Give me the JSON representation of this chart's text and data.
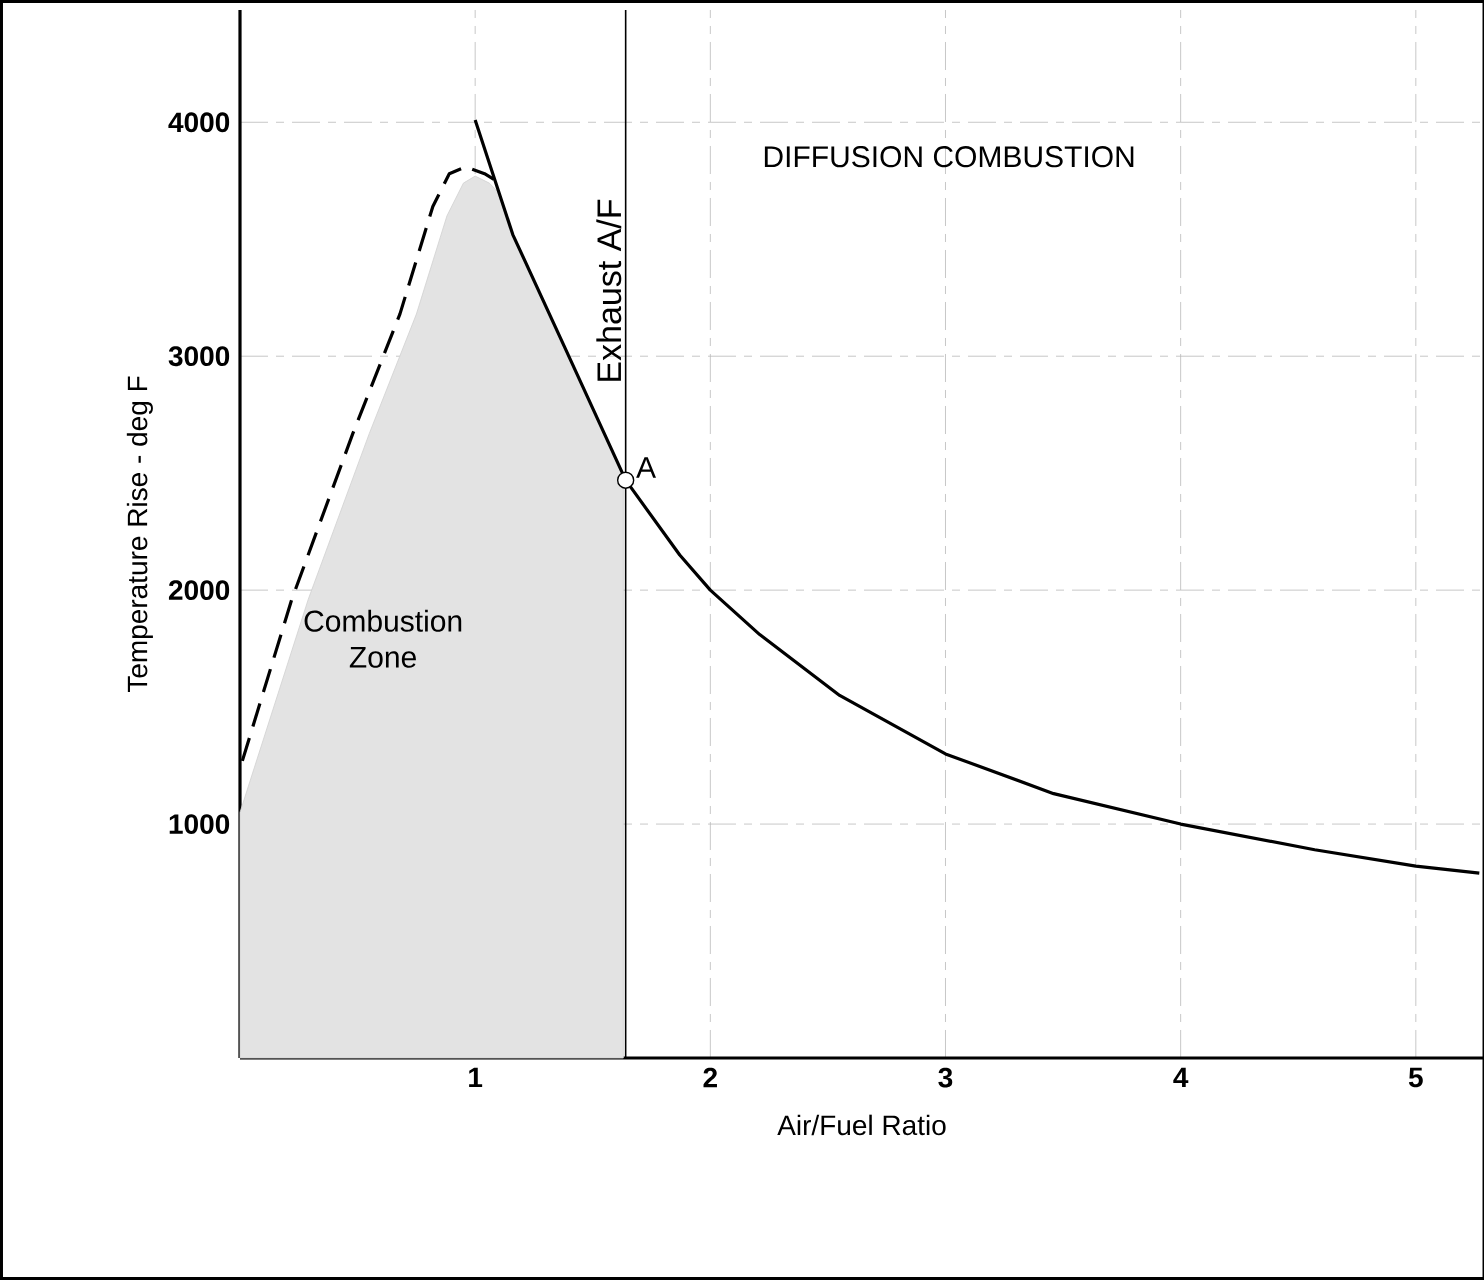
{
  "chart_data": {
    "type": "line",
    "xlabel": "Air/Fuel Ratio",
    "ylabel": "Temperature Rise - deg F",
    "xlim": [
      0,
      5.29
    ],
    "ylim": [
      0,
      4480
    ],
    "xticks": [
      1,
      2,
      3,
      4,
      5
    ],
    "yticks": [
      1000,
      2000,
      3000,
      4000
    ],
    "grid": true,
    "marker": "none",
    "series": [
      {
        "color": "#000000",
        "line_style": "dashed",
        "x": [
          0.01,
          0.22,
          0.48,
          0.68,
          0.82,
          0.89,
          0.96,
          1.04,
          1.09
        ],
        "values": [
          1270,
          1960,
          2670,
          3180,
          3640,
          3780,
          3810,
          3780,
          3750
        ]
      },
      {
        "color": "#000000",
        "line_style": "solid",
        "x": [
          1.0,
          1.16,
          1.38,
          1.64,
          1.87,
          2.0,
          2.21,
          2.55,
          3.0,
          3.46,
          4.0,
          4.57,
          5.0,
          5.27
        ],
        "values": [
          4010,
          3520,
          3040,
          2470,
          2150,
          2000,
          1810,
          1550,
          1300,
          1130,
          1000,
          890,
          820,
          790
        ]
      },
      {
        "type": "area",
        "color": "#d0d0d0",
        "x": [
          0,
          0.29,
          0.55,
          0.75,
          0.88,
          0.95,
          1.0,
          1.06,
          1.1,
          1.16,
          1.38,
          1.63
        ],
        "values": [
          1050,
          1960,
          2670,
          3180,
          3600,
          3740,
          3770,
          3740,
          3700,
          3520,
          3040,
          2490
        ]
      }
    ],
    "ref_lines": [
      {
        "axis": "x",
        "value": 1.64,
        "label": "Exhaust A/F",
        "color": "#000000"
      }
    ],
    "annotations": [
      "DIFFUSION COMBUSTION",
      {
        "text": "A",
        "x": 1.64,
        "y": 2470
      },
      "Combustion Zone"
    ]
  }
}
